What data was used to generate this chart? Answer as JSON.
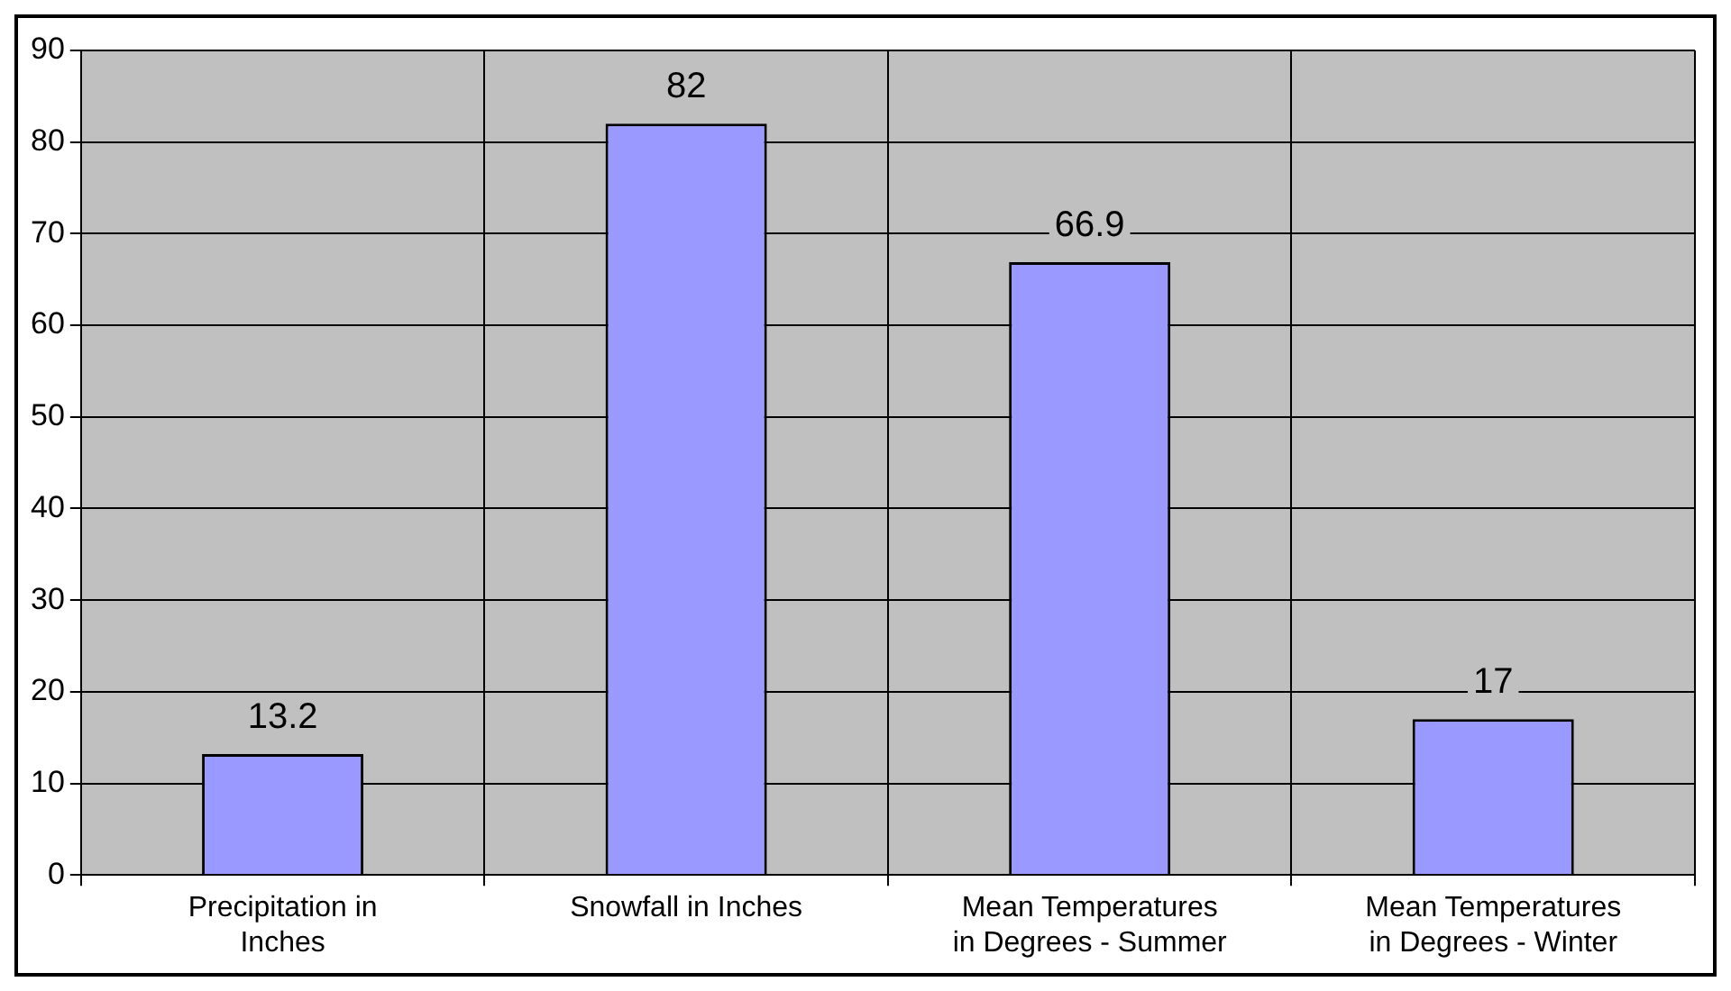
{
  "chart_data": {
    "type": "bar",
    "categories": [
      "Precipitation in Inches",
      "Snowfall in Inches",
      "Mean Temperatures in Degrees - Summer",
      "Mean Temperatures in Degrees - Winter"
    ],
    "values": [
      13.2,
      82,
      66.9,
      17
    ],
    "color": "#9999ff",
    "ylim": [
      0,
      90
    ],
    "yticks": [
      0,
      10,
      20,
      30,
      40,
      50,
      60,
      70,
      80,
      90
    ],
    "grid": true,
    "data_labels": true,
    "legend": false
  }
}
